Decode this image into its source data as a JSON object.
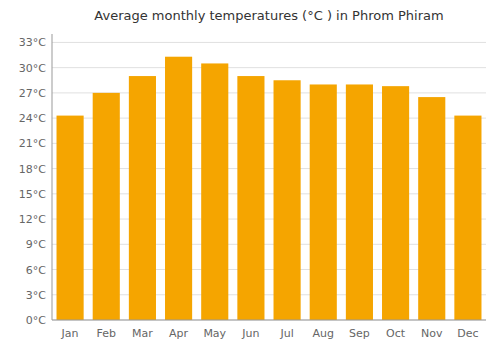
{
  "chart_data": {
    "type": "bar",
    "title": "Average monthly temperatures (°C ) in Phrom Phiram",
    "categories": [
      "Jan",
      "Feb",
      "Mar",
      "Apr",
      "May",
      "Jun",
      "Jul",
      "Aug",
      "Sep",
      "Oct",
      "Nov",
      "Dec"
    ],
    "values": [
      24.3,
      27.0,
      29.0,
      31.3,
      30.5,
      29.0,
      28.5,
      28.0,
      28.0,
      27.8,
      26.5,
      24.3
    ],
    "color": "#F5A500",
    "ylim": [
      0,
      34
    ],
    "yticks": [
      {
        "value": 0,
        "label": "0°C"
      },
      {
        "value": 3,
        "label": "3°C"
      },
      {
        "value": 6,
        "label": "6°C"
      },
      {
        "value": 9,
        "label": "9°C"
      },
      {
        "value": 12,
        "label": "12°C"
      },
      {
        "value": 15,
        "label": "15°C"
      },
      {
        "value": 18,
        "label": "18°C"
      },
      {
        "value": 21,
        "label": "21°C"
      },
      {
        "value": 24,
        "label": "24°C"
      },
      {
        "value": 27,
        "label": "27°C"
      },
      {
        "value": 30,
        "label": "30°C"
      },
      {
        "value": 33,
        "label": "33°C"
      }
    ],
    "grid": true
  }
}
